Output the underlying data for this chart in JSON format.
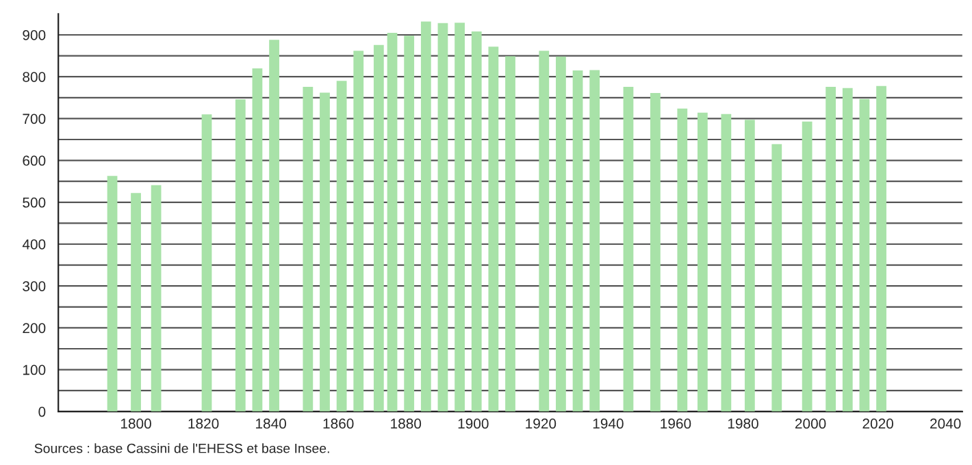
{
  "chart_data": {
    "type": "bar",
    "x": [
      1793,
      1800,
      1806,
      1821,
      1831,
      1836,
      1841,
      1851,
      1856,
      1861,
      1866,
      1872,
      1876,
      1881,
      1886,
      1891,
      1896,
      1901,
      1906,
      1911,
      1921,
      1926,
      1931,
      1936,
      1946,
      1954,
      1962,
      1968,
      1975,
      1982,
      1990,
      1999,
      2006,
      2011,
      2016,
      2021
    ],
    "values": [
      563,
      522,
      541,
      710,
      746,
      820,
      888,
      776,
      762,
      790,
      862,
      876,
      905,
      898,
      932,
      928,
      929,
      908,
      872,
      849,
      862,
      848,
      815,
      816,
      776,
      761,
      724,
      714,
      711,
      697,
      639,
      693,
      776,
      773,
      747,
      778
    ],
    "color": "#a8e2a8",
    "xlim": [
      1777,
      2045
    ],
    "xticks": [
      1800,
      1820,
      1840,
      1860,
      1880,
      1900,
      1920,
      1940,
      1960,
      1980,
      2000,
      2020,
      2040
    ],
    "ylim": [
      0,
      950
    ],
    "yticks": [
      0,
      {
        "value": 50,
        "label": null
      },
      100,
      {
        "value": 150,
        "label": null
      },
      200,
      {
        "value": 250,
        "label": null
      },
      300,
      {
        "value": 350,
        "label": null
      },
      400,
      {
        "value": 450,
        "label": null
      },
      500,
      {
        "value": 550,
        "label": null
      },
      600,
      {
        "value": 650,
        "label": null
      },
      700,
      {
        "value": 750,
        "label": null
      },
      800,
      {
        "value": 850,
        "label": null
      },
      900
    ],
    "grid": "y",
    "annotations": [
      "Sources : base Cassini de l'EHESS et base Insee."
    ]
  }
}
